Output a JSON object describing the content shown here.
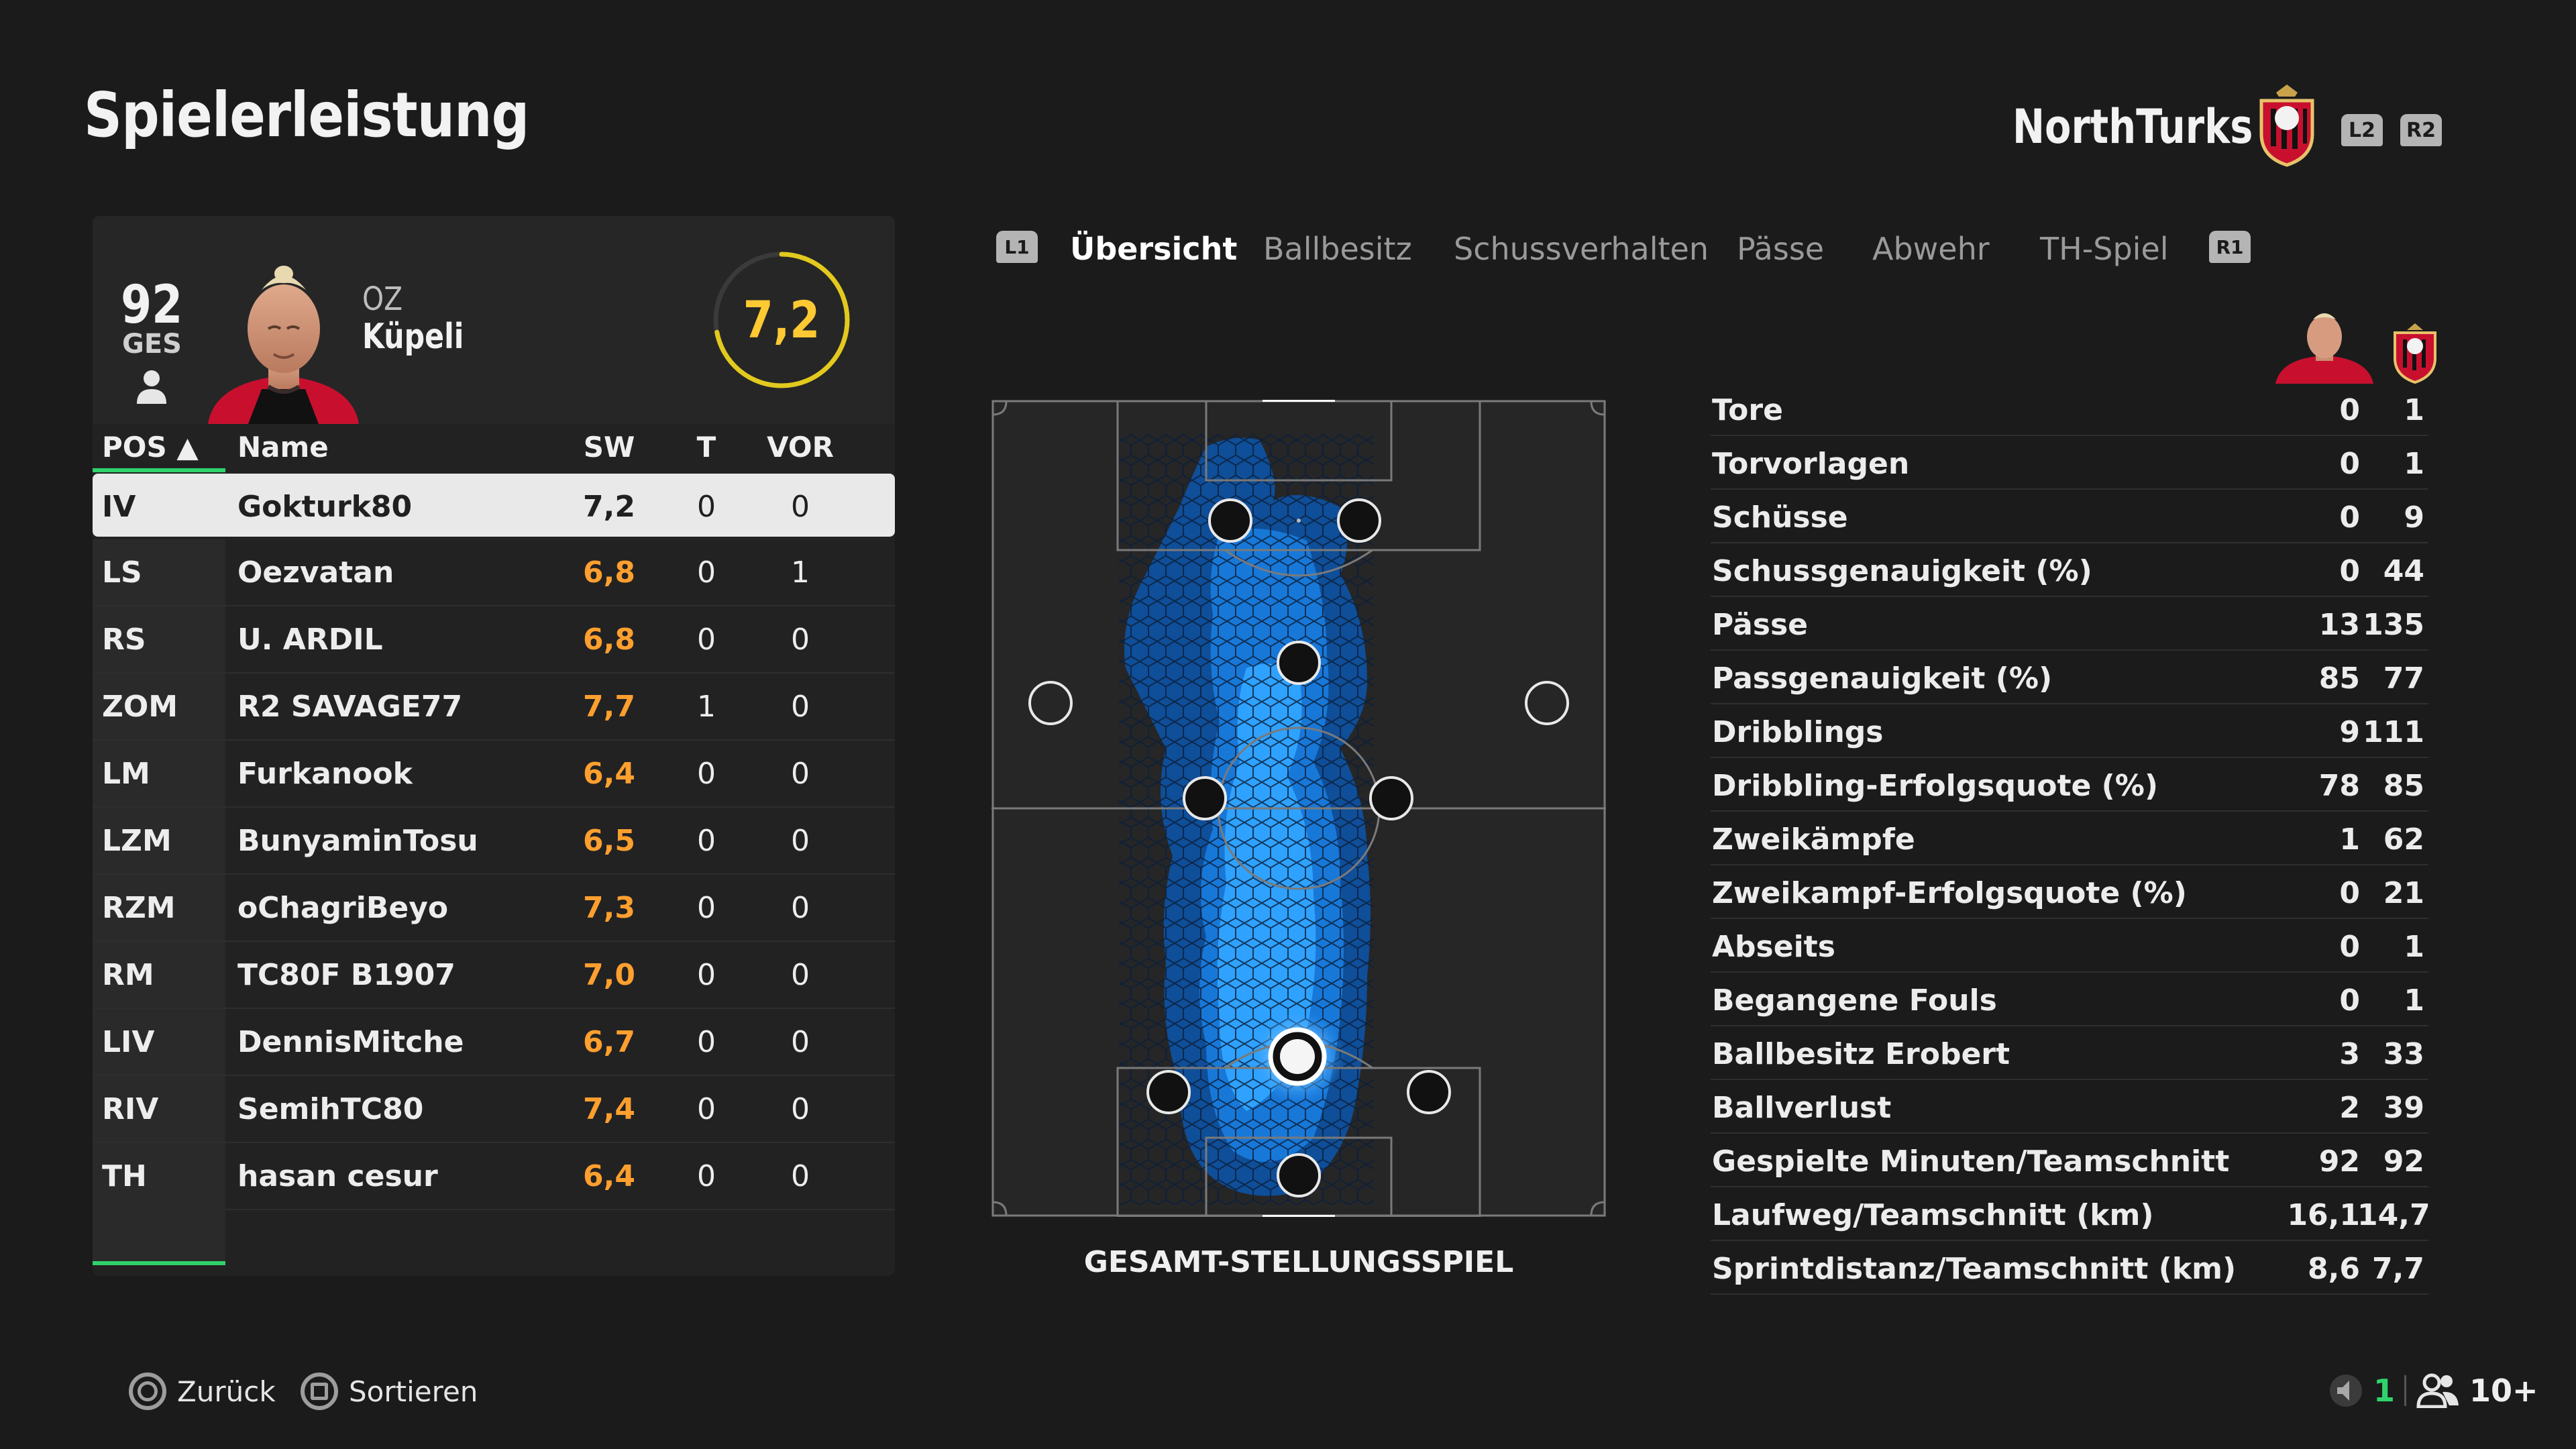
{
  "header": {
    "title": "Spielerleistung",
    "club_name": "NorthTurks",
    "l2": "L2",
    "r2": "R2"
  },
  "player_card": {
    "overall": "92",
    "overall_label": "GES",
    "first_name": "OZ",
    "last_name": "Küpeli",
    "rating": "7,2",
    "rating_fraction": 0.72
  },
  "table": {
    "headers": {
      "pos": "POS ▲",
      "name": "Name",
      "sw": "SW",
      "t": "T",
      "vor": "VOR"
    },
    "rows": [
      {
        "pos": "IV",
        "name": "Gokturk80",
        "sw": "7,2",
        "t": "0",
        "vor": "0"
      },
      {
        "pos": "LS",
        "name": "Oezvatan",
        "sw": "6,8",
        "t": "0",
        "vor": "1"
      },
      {
        "pos": "RS",
        "name": "U. ARDIL",
        "sw": "6,8",
        "t": "0",
        "vor": "0"
      },
      {
        "pos": "ZOM",
        "name": "R2 SAVAGE77",
        "sw": "7,7",
        "t": "1",
        "vor": "0"
      },
      {
        "pos": "LM",
        "name": "Furkanook",
        "sw": "6,4",
        "t": "0",
        "vor": "0"
      },
      {
        "pos": "LZM",
        "name": "BunyaminTosu",
        "sw": "6,5",
        "t": "0",
        "vor": "0"
      },
      {
        "pos": "RZM",
        "name": "oChagriBeyo",
        "sw": "7,3",
        "t": "0",
        "vor": "0"
      },
      {
        "pos": "RM",
        "name": "TC80F B1907",
        "sw": "7,0",
        "t": "0",
        "vor": "0"
      },
      {
        "pos": "LIV",
        "name": "DennisMitche",
        "sw": "6,7",
        "t": "0",
        "vor": "0"
      },
      {
        "pos": "RIV",
        "name": "SemihTC80",
        "sw": "7,4",
        "t": "0",
        "vor": "0"
      },
      {
        "pos": "TH",
        "name": "hasan cesur",
        "sw": "6,4",
        "t": "0",
        "vor": "0"
      }
    ]
  },
  "tabs": {
    "l1": "L1",
    "r1": "R1",
    "items": [
      "Übersicht",
      "Ballbesitz",
      "Schussverhalten",
      "Pässe",
      "Abwehr",
      "TH-Spiel"
    ],
    "active": "Übersicht"
  },
  "pitch": {
    "caption": "GESAMT-STELLUNGSSPIEL"
  },
  "stats": [
    {
      "label": "Tore",
      "player": "0",
      "team": "1"
    },
    {
      "label": "Torvorlagen",
      "player": "0",
      "team": "1"
    },
    {
      "label": "Schüsse",
      "player": "0",
      "team": "9"
    },
    {
      "label": "Schussgenauigkeit (%)",
      "player": "0",
      "team": "44"
    },
    {
      "label": "Pässe",
      "player": "13",
      "team": "135"
    },
    {
      "label": "Passgenauigkeit (%)",
      "player": "85",
      "team": "77"
    },
    {
      "label": "Dribblings",
      "player": "9",
      "team": "111"
    },
    {
      "label": "Dribbling-Erfolgsquote (%)",
      "player": "78",
      "team": "85"
    },
    {
      "label": "Zweikämpfe",
      "player": "1",
      "team": "62"
    },
    {
      "label": "Zweikampf-Erfolgsquote (%)",
      "player": "0",
      "team": "21"
    },
    {
      "label": "Abseits",
      "player": "0",
      "team": "1"
    },
    {
      "label": "Begangene Fouls",
      "player": "0",
      "team": "1"
    },
    {
      "label": "Ballbesitz Erobert",
      "player": "3",
      "team": "33"
    },
    {
      "label": "Ballverlust",
      "player": "2",
      "team": "39"
    },
    {
      "label": "Gespielte Minuten/Teamschnitt",
      "player": "92",
      "team": "92"
    },
    {
      "label": "Laufweg/Teamschnitt (km)",
      "player": "16,1",
      "team": "14,7"
    },
    {
      "label": "Sprintdistanz/Teamschnitt (km)",
      "player": "8,6",
      "team": "7,7"
    }
  ],
  "footer": {
    "back_label": "Zurück",
    "sort_label": "Sortieren",
    "mic_count": "1",
    "players_count": "10+"
  },
  "colors": {
    "accent_green": "#2fd36b",
    "rating_yellow": "#ffc933",
    "rating_orange": "#ff9f2e",
    "heatmap_blue": "#1e90ff"
  }
}
